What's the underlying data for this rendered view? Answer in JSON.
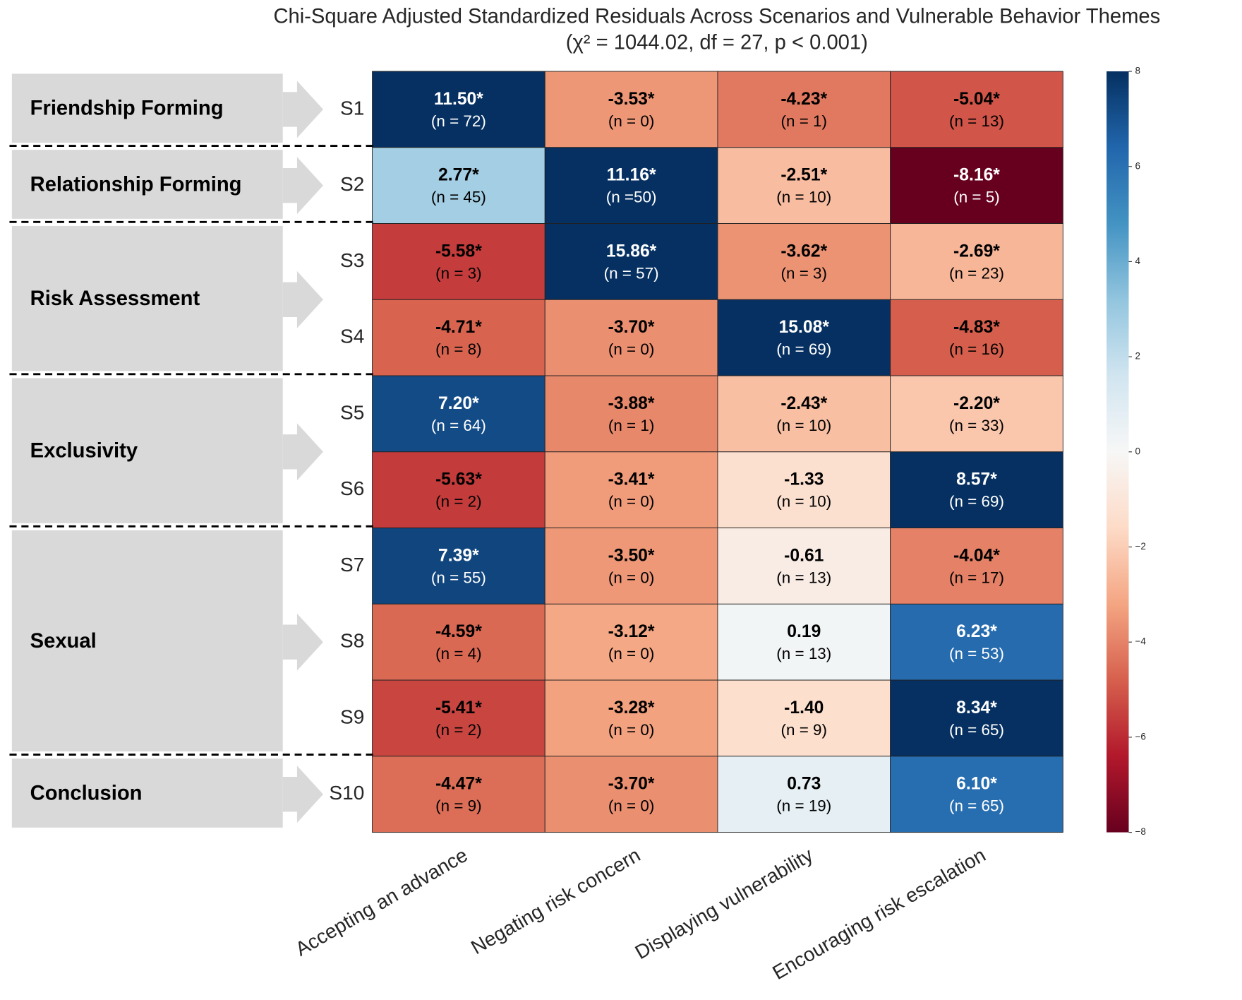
{
  "chart_data": {
    "type": "heatmap",
    "title": "Chi-Square Adjusted Standardized Residuals Across Scenarios and Vulnerable Behavior Themes",
    "subtitle": "(χ² = 1044.02, df = 27, p < 0.001)",
    "x_categories": [
      "Accepting an advance",
      "Negating risk concern",
      "Displaying vulnerability",
      "Encouraging risk escalation"
    ],
    "groups": [
      {
        "label": "Friendship Forming",
        "rows": [
          "S1"
        ]
      },
      {
        "label": "Relationship Forming",
        "rows": [
          "S2"
        ]
      },
      {
        "label": "Risk Assessment",
        "rows": [
          "S3",
          "S4"
        ]
      },
      {
        "label": "Exclusivity",
        "rows": [
          "S5",
          "S6"
        ]
      },
      {
        "label": "Sexual",
        "rows": [
          "S7",
          "S8",
          "S9"
        ]
      },
      {
        "label": "Conclusion",
        "rows": [
          "S10"
        ]
      }
    ],
    "values": [
      [
        11.5,
        -3.53,
        -4.23,
        -5.04
      ],
      [
        2.77,
        11.16,
        -2.51,
        -8.16
      ],
      [
        -5.58,
        15.86,
        -3.62,
        -2.69
      ],
      [
        -4.71,
        -3.7,
        15.08,
        -4.83
      ],
      [
        7.2,
        -3.88,
        -2.43,
        -2.2
      ],
      [
        -5.63,
        -3.41,
        -1.33,
        8.57
      ],
      [
        7.39,
        -3.5,
        -0.61,
        -4.04
      ],
      [
        -4.59,
        -3.12,
        0.19,
        6.23
      ],
      [
        -5.41,
        -3.28,
        -1.4,
        8.34
      ],
      [
        -4.47,
        -3.7,
        0.73,
        6.1
      ]
    ],
    "value_labels": [
      [
        "11.50*",
        "-3.53*",
        "-4.23*",
        "-5.04*"
      ],
      [
        "2.77*",
        "11.16*",
        "-2.51*",
        "-8.16*"
      ],
      [
        "-5.58*",
        "15.86*",
        "-3.62*",
        "-2.69*"
      ],
      [
        "-4.71*",
        "-3.70*",
        "15.08*",
        "-4.83*"
      ],
      [
        "7.20*",
        "-3.88*",
        "-2.43*",
        "-2.20*"
      ],
      [
        "-5.63*",
        "-3.41*",
        "-1.33",
        "8.57*"
      ],
      [
        "7.39*",
        "-3.50*",
        "-0.61",
        "-4.04*"
      ],
      [
        "-4.59*",
        "-3.12*",
        "0.19",
        "6.23*"
      ],
      [
        "-5.41*",
        "-3.28*",
        "-1.40",
        "8.34*"
      ],
      [
        "-4.47*",
        "-3.70*",
        "0.73",
        "6.10*"
      ]
    ],
    "cell_notes": [
      [
        "(n = 72)",
        "(n = 0)",
        "(n = 1)",
        "(n = 13)"
      ],
      [
        "(n = 45)",
        "(n =50)",
        "(n = 10)",
        "(n = 5)"
      ],
      [
        "(n = 3)",
        "(n = 57)",
        "(n = 3)",
        "(n = 23)"
      ],
      [
        "(n = 8)",
        "(n = 0)",
        "(n = 69)",
        "(n = 16)"
      ],
      [
        "(n = 64)",
        "(n = 1)",
        "(n = 10)",
        "(n = 33)"
      ],
      [
        "(n = 2)",
        "(n = 0)",
        "(n = 10)",
        "(n = 69)"
      ],
      [
        "(n = 55)",
        "(n = 0)",
        "(n = 13)",
        "(n = 17)"
      ],
      [
        "(n = 4)",
        "(n = 0)",
        "(n = 13)",
        "(n = 53)"
      ],
      [
        "(n = 2)",
        "(n = 0)",
        "(n = 9)",
        "(n = 65)"
      ],
      [
        "(n = 9)",
        "(n = 0)",
        "(n = 19)",
        "(n = 65)"
      ]
    ],
    "colormap": "RdBu",
    "vlim": [
      -8,
      8
    ],
    "cbar_ticks": [
      {
        "value": -8,
        "label": "−8"
      },
      {
        "value": -6,
        "label": "−6"
      },
      {
        "value": -4,
        "label": "−4"
      },
      {
        "value": -2,
        "label": "−2"
      },
      0,
      2,
      4,
      6,
      8
    ]
  }
}
